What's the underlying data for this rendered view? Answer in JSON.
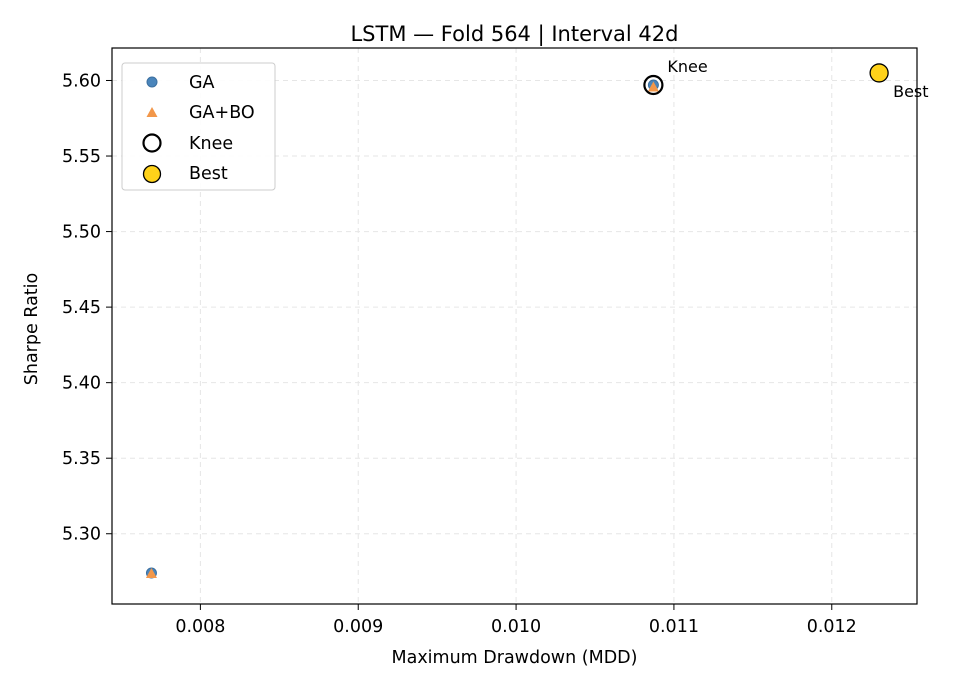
{
  "chart_data": {
    "type": "scatter",
    "title": "LSTM — Fold 564 | Interval 42d",
    "xlabel": "Maximum Drawdown (MDD)",
    "ylabel": "Sharpe Ratio",
    "xlim": [
      0.00744,
      0.01254
    ],
    "ylim": [
      5.2535,
      5.6215
    ],
    "x_ticks": [
      0.008,
      0.009,
      0.01,
      0.011,
      0.012
    ],
    "x_tick_labels": [
      "0.008",
      "0.009",
      "0.010",
      "0.011",
      "0.012"
    ],
    "y_ticks": [
      5.3,
      5.35,
      5.4,
      5.45,
      5.5,
      5.55,
      5.6
    ],
    "y_tick_labels": [
      "5.30",
      "5.35",
      "5.40",
      "5.45",
      "5.50",
      "5.55",
      "5.60"
    ],
    "grid": true,
    "legend_position": "top-left",
    "series": [
      {
        "name": "GA",
        "marker": "circle",
        "color": "#4a85bb",
        "points": [
          {
            "x": 0.00769,
            "y": 5.274
          },
          {
            "x": 0.01087,
            "y": 5.597
          }
        ]
      },
      {
        "name": "GA+BO",
        "marker": "triangle",
        "color": "#f2974a",
        "points": [
          {
            "x": 0.00769,
            "y": 5.274
          },
          {
            "x": 0.01087,
            "y": 5.596
          }
        ]
      },
      {
        "name": "Knee",
        "marker": "ring",
        "color": "#000000",
        "points": [
          {
            "x": 0.01087,
            "y": 5.597
          }
        ]
      },
      {
        "name": "Best",
        "marker": "filled-circle",
        "color": "#ffd21a",
        "points": [
          {
            "x": 0.0123,
            "y": 5.605
          }
        ]
      }
    ],
    "annotations": [
      {
        "text": "Knee",
        "x": 0.01087,
        "y": 5.597,
        "placement": "upper-right"
      },
      {
        "text": "Best",
        "x": 0.0123,
        "y": 5.605,
        "placement": "lower-right"
      }
    ]
  }
}
